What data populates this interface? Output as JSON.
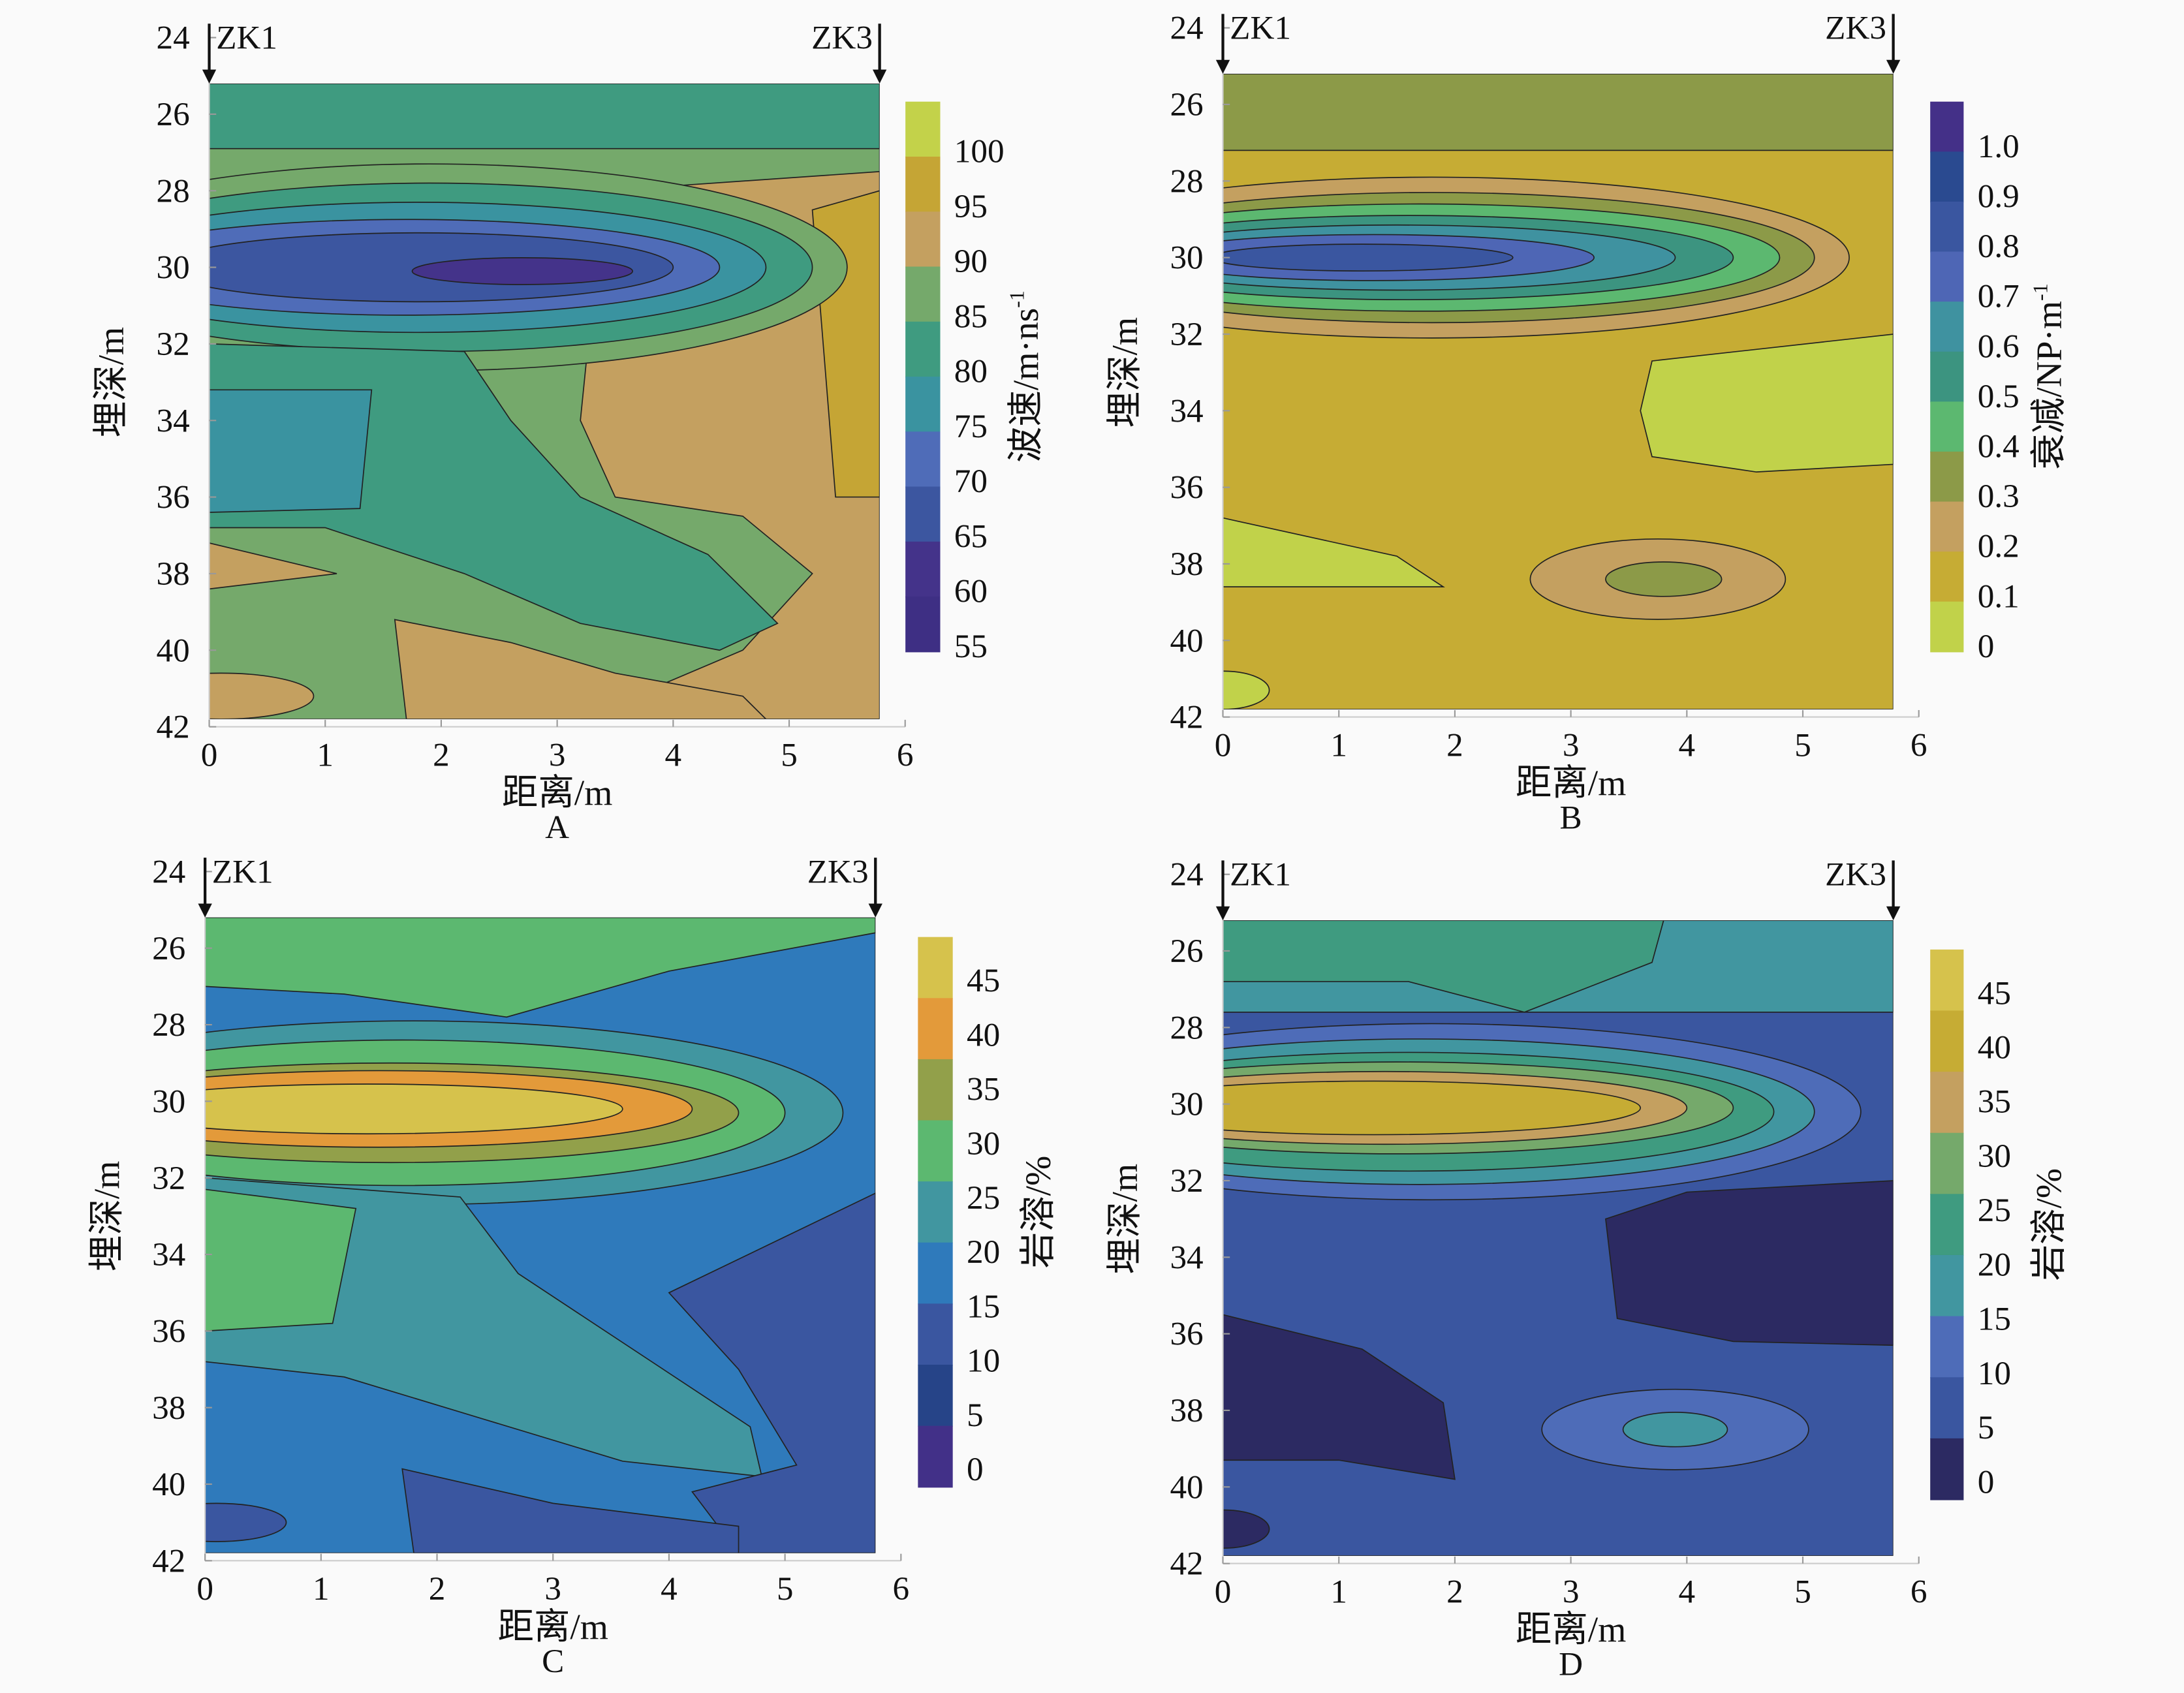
{
  "chart_data": [
    {
      "panel": "A",
      "type": "heatmap",
      "style": "filled-contour",
      "xlabel": "距离/m",
      "ylabel": "埋深/m",
      "xlim": [
        0,
        6
      ],
      "ylim": [
        42,
        24
      ],
      "xticks": [
        "0",
        "1",
        "2",
        "3",
        "4",
        "5",
        "6"
      ],
      "yticks": [
        "24",
        "26",
        "28",
        "30",
        "32",
        "34",
        "36",
        "38",
        "40",
        "42"
      ],
      "wells": [
        "ZK1",
        "ZK3"
      ],
      "colorbar": {
        "label": "波速/m·ns",
        "label_sup": "-1",
        "ticks": [
          "55",
          "60",
          "65",
          "70",
          "75",
          "80",
          "85",
          "90",
          "95",
          "100"
        ],
        "colors": [
          "#3e2f84",
          "#44338a",
          "#3c56a0",
          "#4f6cb8",
          "#3a93a0",
          "#3f9b80",
          "#75a96b",
          "#c4a060",
          "#c5a535",
          "#c3d24a"
        ]
      }
    },
    {
      "panel": "B",
      "type": "heatmap",
      "style": "filled-contour",
      "xlabel": "距离/m",
      "ylabel": "埋深/m",
      "xlim": [
        0,
        6
      ],
      "ylim": [
        42,
        24
      ],
      "xticks": [
        "0",
        "1",
        "2",
        "3",
        "4",
        "5",
        "6"
      ],
      "yticks": [
        "24",
        "26",
        "28",
        "30",
        "32",
        "34",
        "36",
        "38",
        "40",
        "42"
      ],
      "wells": [
        "ZK1",
        "ZK3"
      ],
      "colorbar": {
        "label": "衰减/NP·m",
        "label_sup": "-1",
        "ticks": [
          "0",
          "0.1",
          "0.2",
          "0.3",
          "0.4",
          "0.5",
          "0.6",
          "0.7",
          "0.8",
          "0.9",
          "1.0"
        ],
        "colors": [
          "#c1d24a",
          "#c6ac34",
          "#c4a060",
          "#8c9a48",
          "#5cb870",
          "#3c9480",
          "#3f92a0",
          "#4e66b5",
          "#3a56a0",
          "#2a4a90",
          "#443088"
        ]
      }
    },
    {
      "panel": "C",
      "type": "heatmap",
      "style": "filled-contour",
      "xlabel": "距离/m",
      "ylabel": "埋深/m",
      "xlim": [
        0,
        6
      ],
      "ylim": [
        42,
        24
      ],
      "xticks": [
        "0",
        "1",
        "2",
        "3",
        "4",
        "5",
        "6"
      ],
      "yticks": [
        "24",
        "26",
        "28",
        "30",
        "32",
        "34",
        "36",
        "38",
        "40",
        "42"
      ],
      "wells": [
        "ZK1",
        "ZK3"
      ],
      "colorbar": {
        "label": "岩溶/%",
        "label_sup": "",
        "ticks": [
          "0",
          "5",
          "10",
          "15",
          "20",
          "25",
          "30",
          "35",
          "40",
          "45"
        ],
        "colors": [
          "#423088",
          "#264488",
          "#3a56a0",
          "#2f7abb",
          "#4196a0",
          "#5cb870",
          "#92a04a",
          "#e39a3a",
          "#d6c24c"
        ]
      }
    },
    {
      "panel": "D",
      "type": "heatmap",
      "style": "filled-contour",
      "xlabel": "距离/m",
      "ylabel": "埋深/m",
      "xlim": [
        0,
        6
      ],
      "ylim": [
        42,
        24
      ],
      "xticks": [
        "0",
        "1",
        "2",
        "3",
        "4",
        "5",
        "6"
      ],
      "yticks": [
        "24",
        "26",
        "28",
        "30",
        "32",
        "34",
        "36",
        "38",
        "40",
        "42"
      ],
      "wells": [
        "ZK1",
        "ZK3"
      ],
      "colorbar": {
        "label": "岩溶/%",
        "label_sup": "",
        "ticks": [
          "0",
          "5",
          "10",
          "15",
          "20",
          "25",
          "30",
          "35",
          "40",
          "45"
        ],
        "colors": [
          "#2c2a62",
          "#3a56a0",
          "#4e6cb8",
          "#4196a0",
          "#3f9b80",
          "#75a96b",
          "#c4a060",
          "#c6ac34",
          "#d6c24c"
        ]
      }
    }
  ]
}
